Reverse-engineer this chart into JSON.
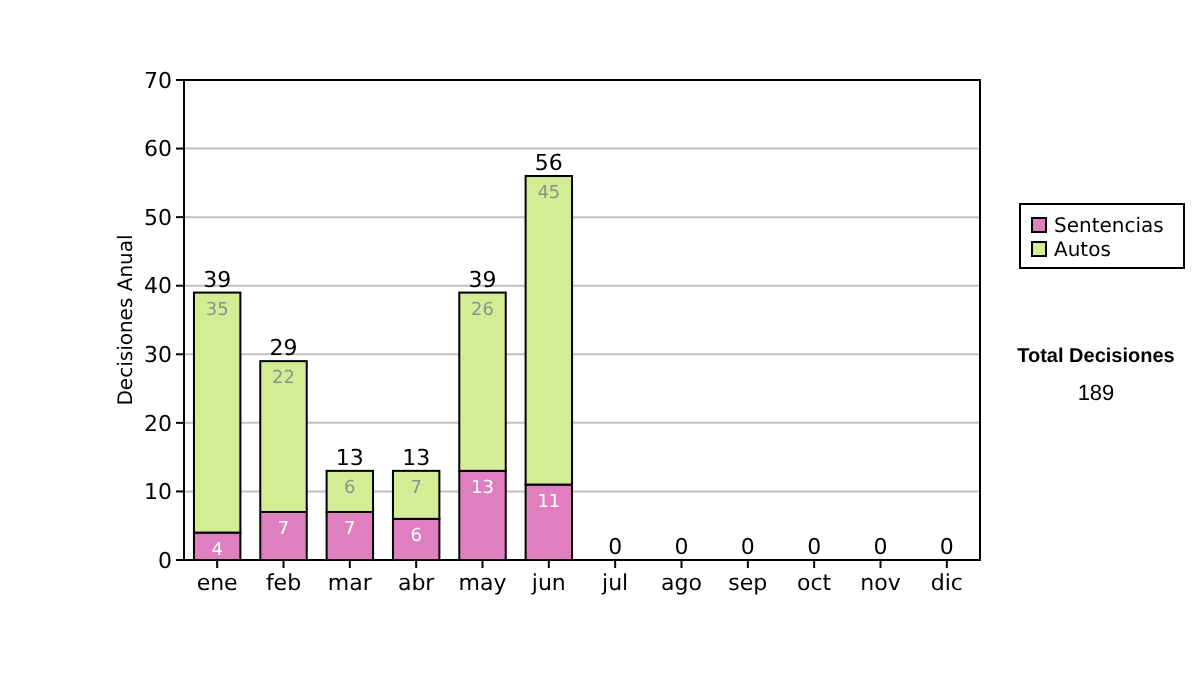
{
  "chart_data": {
    "type": "bar",
    "stacked": true,
    "ylabel": "Decisiones Anual",
    "categories": [
      "ene",
      "feb",
      "mar",
      "abr",
      "may",
      "jun",
      "jul",
      "ago",
      "sep",
      "oct",
      "nov",
      "dic"
    ],
    "series": [
      {
        "name": "Sentencias",
        "color": "#e07fc0",
        "values": [
          4,
          7,
          7,
          6,
          13,
          11,
          0,
          0,
          0,
          0,
          0,
          0
        ],
        "value_labels": [
          "4",
          "7",
          "7",
          "6",
          "13",
          "11",
          null,
          null,
          null,
          null,
          null,
          null
        ]
      },
      {
        "name": "Autos",
        "color": "#d4ec94",
        "values": [
          35,
          22,
          6,
          7,
          26,
          45,
          0,
          0,
          0,
          0,
          0,
          0
        ],
        "value_labels": [
          "35",
          "22",
          "6",
          "7",
          "26",
          "45",
          null,
          null,
          null,
          null,
          null,
          null
        ]
      }
    ],
    "totals": [
      "39",
      "29",
      "13",
      "13",
      "39",
      "56",
      "0",
      "0",
      "0",
      "0",
      "0",
      "0"
    ],
    "ylim": [
      0,
      70
    ],
    "yticks": [
      0,
      10,
      20,
      30,
      40,
      50,
      60,
      70
    ],
    "grid": "y",
    "legend": "right",
    "annotations": [
      "Total Decisiones",
      "189"
    ]
  }
}
